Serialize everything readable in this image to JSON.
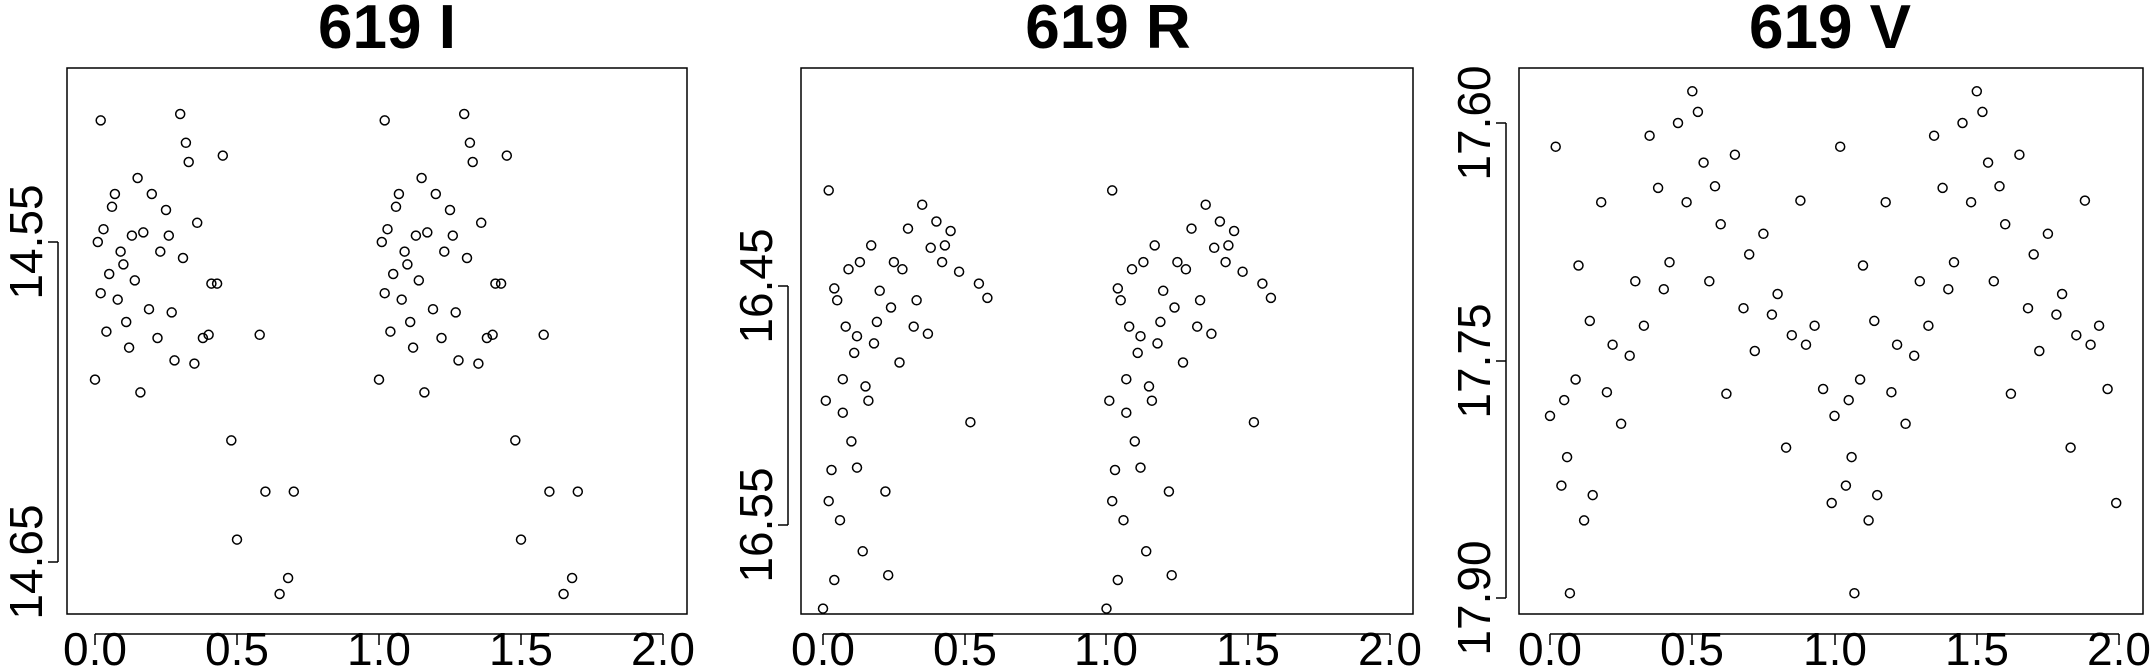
{
  "chart_data": [
    {
      "type": "scatter",
      "title": "619 I",
      "xlim": [
        0.0,
        2.0
      ],
      "ylim": [
        14.69,
        14.5
      ],
      "x_ticks": [
        "0.0",
        "0.5",
        "1.0",
        "1.5",
        "2.0"
      ],
      "x_tick_values": [
        0.0,
        0.5,
        1.0,
        1.5,
        2.0
      ],
      "y_ticks": [
        "14.55",
        "14.65"
      ],
      "y_tick_values": [
        14.55,
        14.65
      ],
      "x": [
        0.0,
        0.01,
        0.02,
        0.03,
        0.04,
        0.05,
        0.07,
        0.08,
        0.1,
        0.12,
        0.14,
        0.17,
        0.2,
        0.22,
        0.25,
        0.27,
        0.3,
        0.31,
        0.33,
        0.35,
        0.38,
        0.41,
        0.45,
        0.48,
        0.5,
        0.58,
        0.6,
        0.65,
        0.68,
        0.7,
        0.02,
        0.06,
        0.09,
        0.11,
        0.13,
        0.15,
        0.19,
        0.23,
        0.28,
        0.32,
        0.36,
        0.43,
        0.4,
        0.16,
        0.26
      ],
      "y": [
        14.593,
        14.55,
        14.566,
        14.546,
        14.578,
        14.56,
        14.535,
        14.568,
        14.557,
        14.583,
        14.562,
        14.547,
        14.535,
        14.58,
        14.54,
        14.572,
        14.51,
        14.555,
        14.525,
        14.588,
        14.58,
        14.563,
        14.523,
        14.612,
        14.643,
        14.579,
        14.628,
        14.66,
        14.655,
        14.628,
        14.512,
        14.539,
        14.553,
        14.575,
        14.548,
        14.53,
        14.571,
        14.553,
        14.587,
        14.519,
        14.544,
        14.563,
        14.579,
        14.597,
        14.548
      ]
    },
    {
      "type": "scatter",
      "title": "619 R",
      "xlim": [
        0.0,
        2.0
      ],
      "ylim": [
        16.59,
        16.4
      ],
      "x_ticks": [
        "0.0",
        "0.5",
        "1.0",
        "1.5",
        "2.0"
      ],
      "x_tick_values": [
        0.0,
        0.5,
        1.0,
        1.5,
        2.0
      ],
      "y_ticks": [
        "16.45",
        "16.55"
      ],
      "y_tick_values": [
        16.45,
        16.55
      ],
      "x": [
        0.0,
        0.01,
        0.02,
        0.03,
        0.04,
        0.05,
        0.06,
        0.07,
        0.08,
        0.1,
        0.11,
        0.12,
        0.13,
        0.14,
        0.15,
        0.17,
        0.18,
        0.2,
        0.22,
        0.24,
        0.25,
        0.27,
        0.3,
        0.32,
        0.35,
        0.37,
        0.38,
        0.4,
        0.42,
        0.45,
        0.48,
        0.52,
        0.55,
        0.58,
        0.02,
        0.04,
        0.07,
        0.09,
        0.12,
        0.16,
        0.19,
        0.23,
        0.28,
        0.33,
        0.43
      ],
      "y": [
        16.585,
        16.498,
        16.41,
        16.527,
        16.573,
        16.456,
        16.548,
        16.503,
        16.467,
        16.515,
        16.478,
        16.526,
        16.44,
        16.561,
        16.492,
        16.433,
        16.474,
        16.452,
        16.536,
        16.459,
        16.44,
        16.482,
        16.426,
        16.467,
        16.416,
        16.47,
        16.434,
        16.423,
        16.44,
        16.427,
        16.444,
        16.507,
        16.449,
        16.455,
        16.54,
        16.451,
        16.489,
        16.443,
        16.471,
        16.498,
        16.465,
        16.571,
        16.443,
        16.456,
        16.433
      ]
    },
    {
      "type": "scatter",
      "title": "619 V",
      "xlim": [
        0.0,
        2.0
      ],
      "ylim": [
        17.91,
        17.57
      ],
      "x_ticks": [
        "0.0",
        "0.5",
        "1.0",
        "1.5",
        "2.0"
      ],
      "x_tick_values": [
        0.0,
        0.5,
        1.0,
        1.5,
        2.0
      ],
      "y_ticks": [
        "17.60",
        "17.75",
        "17.90"
      ],
      "y_tick_values": [
        17.6,
        17.75,
        17.9
      ],
      "x": [
        0.0,
        0.02,
        0.04,
        0.05,
        0.07,
        0.09,
        0.1,
        0.12,
        0.14,
        0.15,
        0.18,
        0.2,
        0.22,
        0.25,
        0.28,
        0.3,
        0.33,
        0.35,
        0.38,
        0.4,
        0.42,
        0.45,
        0.48,
        0.5,
        0.52,
        0.54,
        0.56,
        0.58,
        0.6,
        0.62,
        0.65,
        0.68,
        0.7,
        0.72,
        0.75,
        0.78,
        0.8,
        0.83,
        0.85,
        0.88,
        0.9,
        0.93,
        0.96,
        0.99,
        0.06
      ],
      "y": [
        17.785,
        17.615,
        17.829,
        17.775,
        17.897,
        17.762,
        17.69,
        17.851,
        17.725,
        17.835,
        17.65,
        17.77,
        17.74,
        17.79,
        17.747,
        17.7,
        17.728,
        17.608,
        17.641,
        17.705,
        17.688,
        17.6,
        17.65,
        17.58,
        17.593,
        17.625,
        17.7,
        17.64,
        17.664,
        17.771,
        17.62,
        17.717,
        17.683,
        17.744,
        17.67,
        17.721,
        17.708,
        17.805,
        17.734,
        17.649,
        17.74,
        17.728,
        17.768,
        17.84,
        17.811
      ]
    }
  ]
}
